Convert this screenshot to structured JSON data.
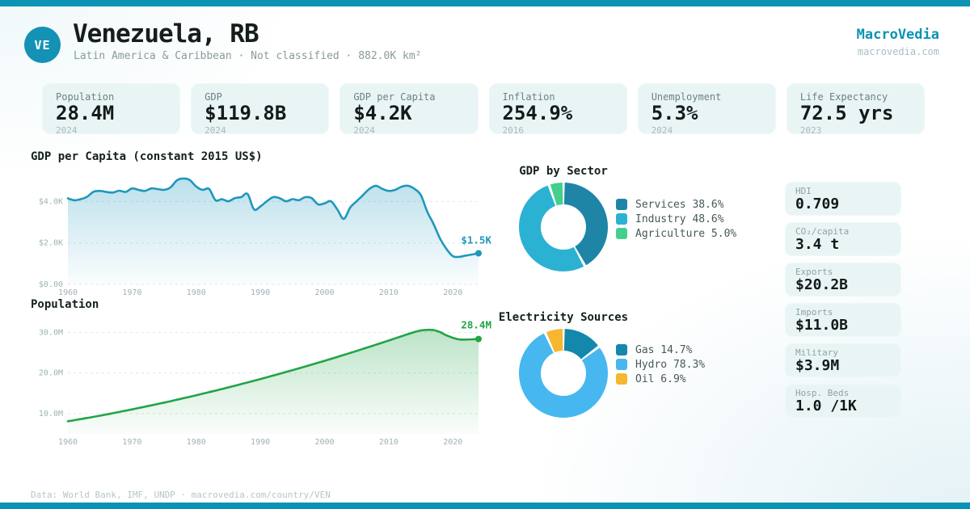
{
  "brand": {
    "name": "MacroVedia",
    "domain": "macrovedia.com"
  },
  "header": {
    "country_code": "VE",
    "title": "Venezuela, RB",
    "subtitle": "Latin America & Caribbean · Not classified · 882.0K km²"
  },
  "stat_cards": [
    {
      "label": "Population",
      "value": "28.4M",
      "year": "2024"
    },
    {
      "label": "GDP",
      "value": "$119.8B",
      "year": "2024"
    },
    {
      "label": "GDP per Capita",
      "value": "$4.2K",
      "year": "2024"
    },
    {
      "label": "Inflation",
      "value": "254.9%",
      "year": "2016"
    },
    {
      "label": "Unemployment",
      "value": "5.3%",
      "year": "2024"
    },
    {
      "label": "Life Expectancy",
      "value": "72.5 yrs",
      "year": "2023"
    }
  ],
  "side_stats": [
    {
      "label": "HDI",
      "value": "0.709"
    },
    {
      "label": "CO₂/capita",
      "value": "3.4 t"
    },
    {
      "label": "Exports",
      "value": "$20.2B"
    },
    {
      "label": "Imports",
      "value": "$11.0B"
    },
    {
      "label": "Military",
      "value": "$3.9M"
    },
    {
      "label": "Hosp. Beds",
      "value": "1.0 /1K"
    }
  ],
  "footer": {
    "text": "Data: World Bank, IMF, UNDP · macrovedia.com/country/VEN"
  },
  "colors": {
    "accent": "#0a93b2",
    "card_bg": "#e9f5f5",
    "grid": "#dce9ec",
    "axis_text": "#9fb2b6"
  },
  "chart_data": [
    {
      "id": "gdp_per_capita",
      "type": "area",
      "title": "GDP per Capita (constant 2015 US$)",
      "color": "#1f97bd",
      "years_start": 1960,
      "years_end": 2024,
      "values": [
        4150,
        4060,
        4110,
        4230,
        4470,
        4510,
        4460,
        4430,
        4520,
        4460,
        4630,
        4560,
        4510,
        4630,
        4600,
        4560,
        4680,
        5020,
        5110,
        5030,
        4720,
        4560,
        4610,
        4060,
        4110,
        4010,
        4160,
        4210,
        4360,
        3620,
        3760,
        4010,
        4210,
        4160,
        4010,
        4110,
        4060,
        4210,
        4160,
        3860,
        3910,
        4010,
        3610,
        3160,
        3710,
        4010,
        4310,
        4610,
        4760,
        4610,
        4510,
        4560,
        4710,
        4760,
        4610,
        4310,
        3510,
        2910,
        2210,
        1710,
        1360,
        1330,
        1390,
        1440,
        1500
      ],
      "end_label": "$1.5K",
      "y_ticks": [
        {
          "value": 0,
          "label": "$0.00"
        },
        {
          "value": 2000,
          "label": "$2.0K"
        },
        {
          "value": 4000,
          "label": "$4.0K"
        }
      ],
      "x_ticks": [
        1960,
        1970,
        1980,
        1990,
        2000,
        2010,
        2020
      ],
      "ylim": [
        0,
        5300
      ],
      "grid": "dashed",
      "legend": "none"
    },
    {
      "id": "population",
      "type": "area",
      "title": "Population",
      "color": "#21a447",
      "years_start": 1960,
      "years_end": 2024,
      "values": [
        8.1,
        8.37,
        8.64,
        8.92,
        9.2,
        9.49,
        9.79,
        10.1,
        10.41,
        10.72,
        11.04,
        11.37,
        11.7,
        12.03,
        12.37,
        12.71,
        13.06,
        13.42,
        13.78,
        14.15,
        14.52,
        14.9,
        15.28,
        15.67,
        16.06,
        16.46,
        16.86,
        17.27,
        17.68,
        18.1,
        18.52,
        18.95,
        19.38,
        19.82,
        20.26,
        20.71,
        21.16,
        21.62,
        22.08,
        22.55,
        23.02,
        23.5,
        23.98,
        24.47,
        24.96,
        25.46,
        25.96,
        26.47,
        26.98,
        27.5,
        28.02,
        28.55,
        29.08,
        29.62,
        30.1,
        30.5,
        30.65,
        30.6,
        30.1,
        29.3,
        28.7,
        28.3,
        28.25,
        28.32,
        28.4
      ],
      "unit": "millions",
      "end_label": "28.4M",
      "y_ticks": [
        {
          "value": 10,
          "label": "10.0M"
        },
        {
          "value": 20,
          "label": "20.0M"
        },
        {
          "value": 30,
          "label": "30.0M"
        }
      ],
      "x_ticks": [
        1960,
        1970,
        1980,
        1990,
        2000,
        2010,
        2020
      ],
      "ylim": [
        5,
        32.5
      ],
      "grid": "dashed",
      "legend": "none"
    },
    {
      "id": "gdp_by_sector",
      "type": "pie",
      "title": "GDP by Sector",
      "slices": [
        {
          "label": "Services",
          "pct": 38.6,
          "color": "#1e85a6",
          "text": "Services 38.6%"
        },
        {
          "label": "Industry",
          "pct": 48.6,
          "color": "#2bb2d3",
          "text": "Industry 48.6%"
        },
        {
          "label": "Agriculture",
          "pct": 5.0,
          "color": "#43d08d",
          "text": "Agriculture 5.0%"
        }
      ],
      "legend_position": "right"
    },
    {
      "id": "electricity_sources",
      "type": "pie",
      "title": "Electricity Sources",
      "slices": [
        {
          "label": "Gas",
          "pct": 14.7,
          "color": "#1487ac",
          "text": "Gas 14.7%"
        },
        {
          "label": "Hydro",
          "pct": 78.3,
          "color": "#47b7ef",
          "text": "Hydro 78.3%"
        },
        {
          "label": "Oil",
          "pct": 6.9,
          "color": "#f5b72f",
          "text": "Oil 6.9%"
        }
      ],
      "legend_position": "right"
    }
  ]
}
